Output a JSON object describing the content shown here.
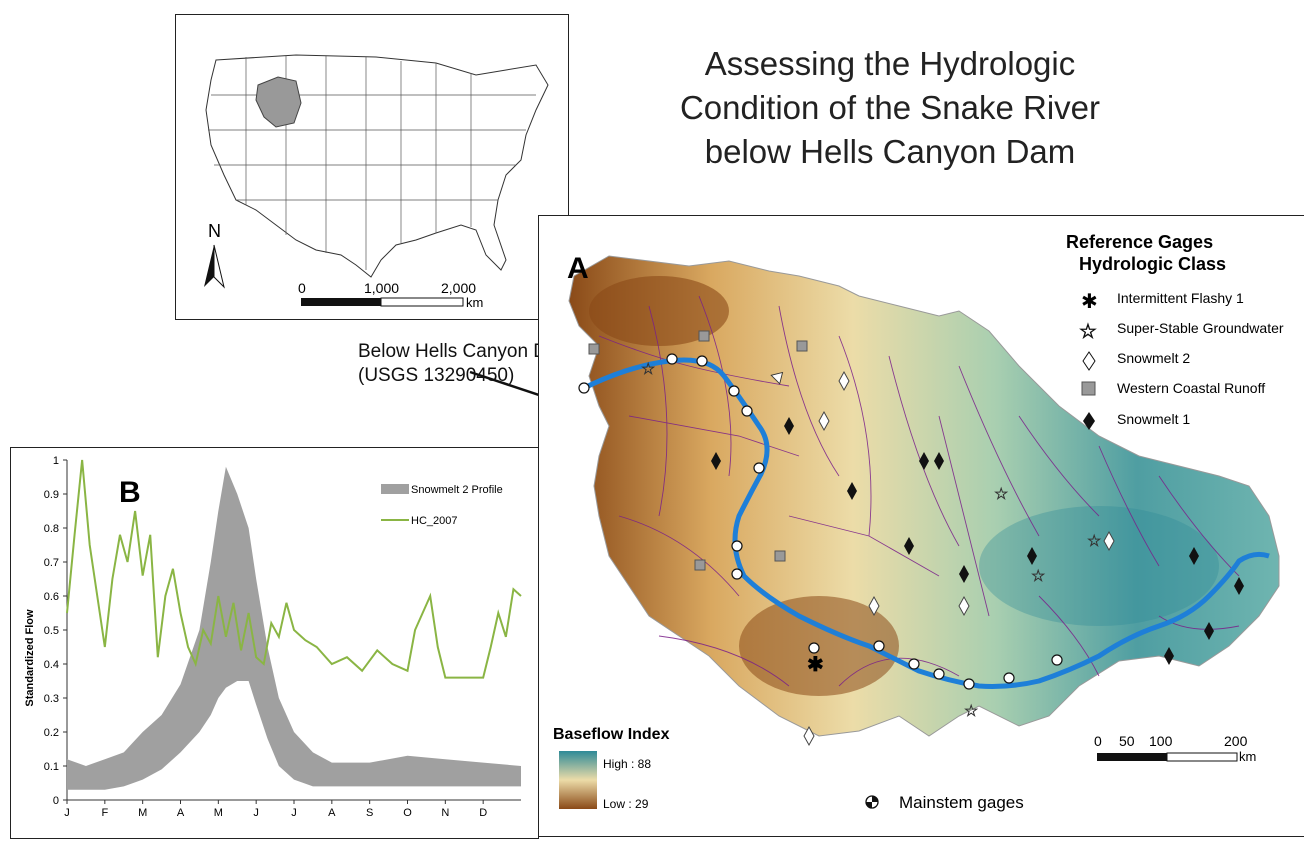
{
  "title": {
    "line1": "Assessing the Hydrologic",
    "line2": "Condition of the Snake River",
    "line3": "below Hells Canyon Dam"
  },
  "inset": {
    "north_label": "N",
    "scale_ticks": [
      "0",
      "1,000",
      "2,000"
    ],
    "scale_unit": "km"
  },
  "callout": {
    "line1": "Below Hells Canyon Dam",
    "line2": "(USGS 13290450)"
  },
  "map": {
    "panel_label": "A",
    "legend_title_1": "Reference Gages",
    "legend_title_2": "Hydrologic Class",
    "legend_items": [
      {
        "label": "Intermittent Flashy 1",
        "icon": "asterisk-icon"
      },
      {
        "label": "Super-Stable Groundwater",
        "icon": "star-outline-icon"
      },
      {
        "label": "Snowmelt 2",
        "icon": "diamond-outline-icon"
      },
      {
        "label": "Western Coastal Runoff",
        "icon": "gray-square-icon"
      },
      {
        "label": "Snowmelt 1",
        "icon": "diamond-filled-icon"
      }
    ],
    "baseflow_title": "Baseflow Index",
    "baseflow_high": "High : 88",
    "baseflow_low": "Low : 29",
    "mainstem_label": "Mainstem gages",
    "scale_ticks": [
      "0",
      "50",
      "100",
      "200"
    ],
    "scale_unit": "km",
    "colors": {
      "high": "#2e8a97",
      "mid": "#e8d8a0",
      "low": "#8a4a18",
      "river": "#1e7fd8",
      "streams": "#7a1f8a"
    }
  },
  "chart_data": {
    "type": "area",
    "panel_label": "B",
    "ylabel": "Standardized Flow",
    "xlabel": "",
    "categories": [
      "J",
      "F",
      "M",
      "A",
      "M",
      "J",
      "J",
      "A",
      "S",
      "O",
      "N",
      "D"
    ],
    "ylim": [
      0,
      1
    ],
    "yticks": [
      "0",
      "0.1",
      "0.2",
      "0.3",
      "0.4",
      "0.5",
      "0.6",
      "0.7",
      "0.8",
      "0.9",
      "1"
    ],
    "series": [
      {
        "name": "Snowmelt 2 Profile",
        "type": "band",
        "color": "#a0a0a0",
        "x": [
          0,
          0.5,
          1,
          1.5,
          2,
          2.5,
          3,
          3.5,
          3.8,
          4,
          4.2,
          4.5,
          4.8,
          5,
          5.3,
          5.6,
          6,
          6.5,
          7,
          8,
          9,
          10,
          11,
          12
        ],
        "lower": [
          0.03,
          0.03,
          0.03,
          0.04,
          0.06,
          0.09,
          0.14,
          0.2,
          0.25,
          0.3,
          0.33,
          0.35,
          0.35,
          0.28,
          0.18,
          0.1,
          0.06,
          0.04,
          0.04,
          0.04,
          0.04,
          0.04,
          0.04,
          0.04
        ],
        "upper": [
          0.12,
          0.1,
          0.12,
          0.14,
          0.2,
          0.25,
          0.34,
          0.5,
          0.7,
          0.85,
          0.98,
          0.9,
          0.8,
          0.65,
          0.45,
          0.3,
          0.2,
          0.14,
          0.11,
          0.11,
          0.13,
          0.12,
          0.11,
          0.1
        ]
      },
      {
        "name": "HC_2007",
        "type": "line",
        "color": "#8ab544",
        "x": [
          0,
          0.2,
          0.4,
          0.6,
          0.8,
          1.0,
          1.2,
          1.4,
          1.6,
          1.8,
          2.0,
          2.2,
          2.4,
          2.6,
          2.8,
          3.0,
          3.2,
          3.4,
          3.6,
          3.8,
          4.0,
          4.2,
          4.4,
          4.6,
          4.8,
          5.0,
          5.2,
          5.4,
          5.6,
          5.8,
          6.0,
          6.3,
          6.6,
          7.0,
          7.4,
          7.8,
          8.2,
          8.6,
          9.0,
          9.2,
          9.4,
          9.6,
          9.8,
          10.0,
          10.5,
          11.0,
          11.2,
          11.4,
          11.6,
          11.8,
          12.0
        ],
        "values": [
          0.55,
          0.78,
          1.0,
          0.75,
          0.6,
          0.45,
          0.65,
          0.78,
          0.7,
          0.85,
          0.66,
          0.78,
          0.42,
          0.6,
          0.68,
          0.55,
          0.45,
          0.4,
          0.5,
          0.46,
          0.6,
          0.48,
          0.58,
          0.44,
          0.55,
          0.42,
          0.4,
          0.52,
          0.48,
          0.58,
          0.5,
          0.47,
          0.45,
          0.4,
          0.42,
          0.38,
          0.44,
          0.4,
          0.38,
          0.5,
          0.55,
          0.6,
          0.45,
          0.36,
          0.36,
          0.36,
          0.45,
          0.55,
          0.48,
          0.62,
          0.6
        ]
      }
    ]
  }
}
